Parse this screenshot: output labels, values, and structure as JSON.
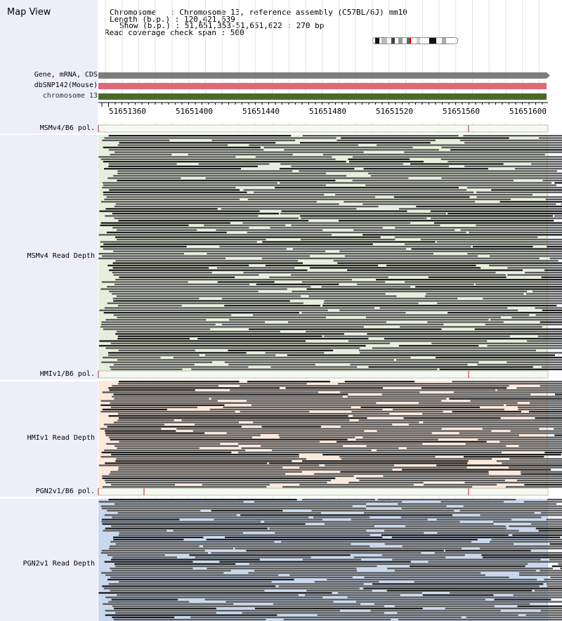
{
  "title": "Map View",
  "info": {
    "chromosome": "Chromosome   : Chromosome 13, reference assembly (C57BL/6J) mm10",
    "length": "Length (b.p.) : 120,421,639",
    "show": "Show (b.p.) : 51,651,353-51,651,622 : 270 bp",
    "coverage": "Read coverage check span : 500"
  },
  "tracks": {
    "gene": "Gene, mRNA, CDS",
    "snp": "dbSNP142(Mouse)",
    "chrom": "chromosome 13"
  },
  "ruler": [
    "51651360",
    "51651400",
    "51651440",
    "51651480",
    "51651520",
    "51651560",
    "51651600"
  ],
  "sections": [
    {
      "pol_label": "MSMv4/B6 pol.",
      "depth_label": "MSMv4 Read Depth",
      "bg": "#e7eedb"
    },
    {
      "pol_label": "HMIv1/B6 pol.",
      "depth_label": "HMIv1 Read Depth",
      "bg": "#fbe9dc"
    },
    {
      "pol_label": "PGN2v1/B6 pol.",
      "depth_label": "PGN2v1 Read Depth",
      "bg": "#c9d8ec"
    }
  ],
  "colors": {
    "gene": "#7d7d7d",
    "snp": "#e06878",
    "chrom": "#4a6a2a",
    "read": "#585858",
    "read_dark": "#1c1c1c"
  }
}
